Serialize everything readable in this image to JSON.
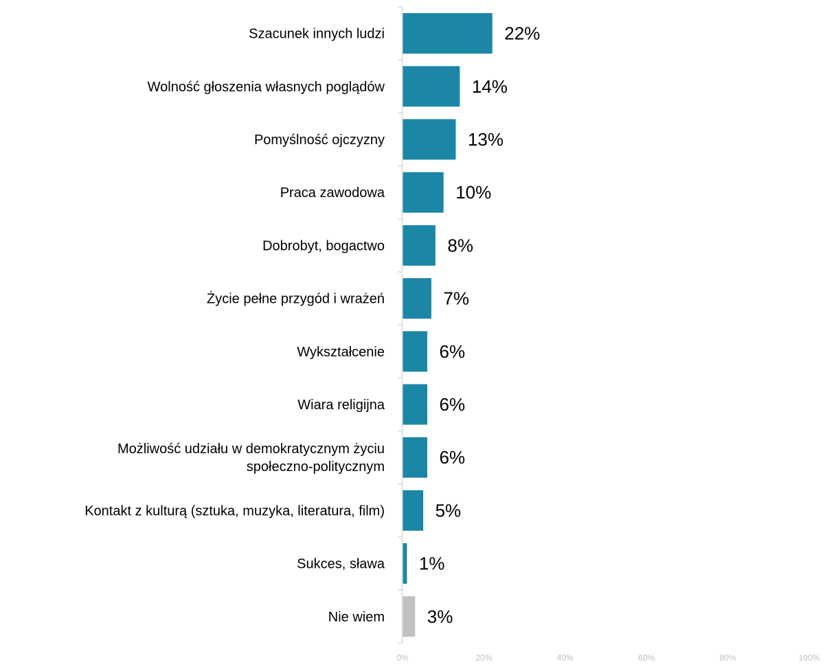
{
  "chart_data": {
    "type": "bar",
    "orientation": "horizontal",
    "title": "",
    "xlabel": "",
    "ylabel": "",
    "xlim": [
      0,
      100
    ],
    "grid": false,
    "legend": "none",
    "categories": [
      [
        "Szacunek innych ludzi"
      ],
      [
        "Wolność głoszenia własnych poglądów"
      ],
      [
        "Pomyślność ojczyzny"
      ],
      [
        "Praca zawodowa"
      ],
      [
        "Dobrobyt, bogactwo"
      ],
      [
        "Życie pełne przygód i wrażeń"
      ],
      [
        "Wykształcenie"
      ],
      [
        "Wiara religijna"
      ],
      [
        "Możliwość udziału w demokratycznym życiu",
        "społeczno-politycznym"
      ],
      [
        "Kontakt z kulturą (sztuka, muzyka, literatura, film)"
      ],
      [
        "Sukces, sława"
      ],
      [
        "Nie wiem"
      ]
    ],
    "values": [
      22,
      14,
      13,
      10,
      8,
      7,
      6,
      6,
      6,
      5,
      1,
      3
    ],
    "value_labels": [
      "22%",
      "14%",
      "13%",
      "10%",
      "8%",
      "7%",
      "6%",
      "6%",
      "6%",
      "5%",
      "1%",
      "3%"
    ],
    "bar_colors": [
      "#1b86a6",
      "#1b86a6",
      "#1b86a6",
      "#1b86a6",
      "#1b86a6",
      "#1b86a6",
      "#1b86a6",
      "#1b86a6",
      "#1b86a6",
      "#1b86a6",
      "#1b86a6",
      "#c0c0c0"
    ],
    "x_ticks": [
      0,
      20,
      40,
      60,
      80,
      100
    ],
    "x_tick_labels": [
      "0%",
      "20%",
      "40%",
      "60%",
      "80%",
      "100%"
    ],
    "colors": {
      "bar": "#1b86a6",
      "bar_nie_wiem": "#c0c0c0",
      "axis": "#d9d9d9",
      "tick_text": "#c0c0c0",
      "text": "#000000"
    }
  }
}
